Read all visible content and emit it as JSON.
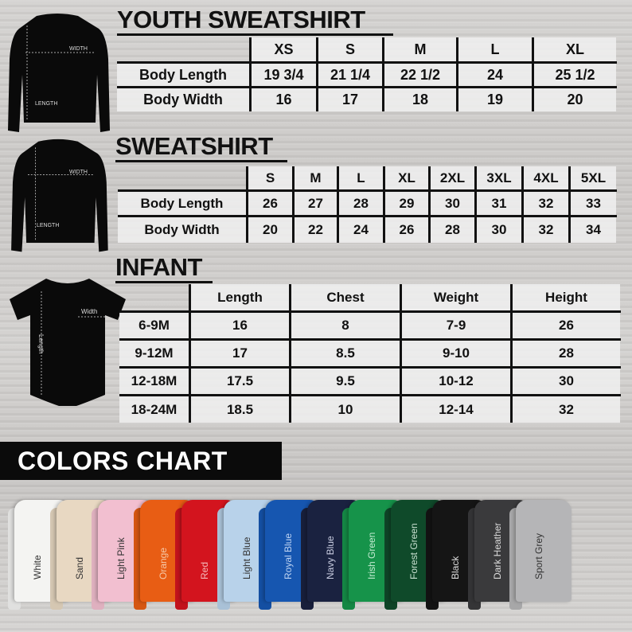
{
  "youth": {
    "title": "YOUTH SWEATSHIRT",
    "diagram": {
      "width_label": "WIDTH",
      "length_label": "LENGTH"
    },
    "sizes": [
      "XS",
      "S",
      "M",
      "L",
      "XL"
    ],
    "rows": [
      {
        "label": "Body Length",
        "values": [
          "19 3/4",
          "21 1/4",
          "22 1/2",
          "24",
          "25 1/2"
        ]
      },
      {
        "label": "Body Width",
        "values": [
          "16",
          "17",
          "18",
          "19",
          "20"
        ]
      }
    ]
  },
  "sweatshirt": {
    "title": "SWEATSHIRT",
    "diagram": {
      "width_label": "WIDTH",
      "length_label": "LENGTH"
    },
    "sizes": [
      "S",
      "M",
      "L",
      "XL",
      "2XL",
      "3XL",
      "4XL",
      "5XL"
    ],
    "rows": [
      {
        "label": "Body Length",
        "values": [
          "26",
          "27",
          "28",
          "29",
          "30",
          "31",
          "32",
          "33"
        ]
      },
      {
        "label": "Body Width",
        "values": [
          "20",
          "22",
          "24",
          "26",
          "28",
          "30",
          "32",
          "34"
        ]
      }
    ]
  },
  "infant": {
    "title": "INFANT",
    "diagram": {
      "width_label": "Width",
      "length_label": "Length"
    },
    "columns": [
      "Length",
      "Chest",
      "Weight",
      "Height"
    ],
    "rows": [
      {
        "label": "6-9M",
        "values": [
          "16",
          "8",
          "7-9",
          "26"
        ]
      },
      {
        "label": "9-12M",
        "values": [
          "17",
          "8.5",
          "9-10",
          "28"
        ]
      },
      {
        "label": "12-18M",
        "values": [
          "17.5",
          "9.5",
          "10-12",
          "30"
        ]
      },
      {
        "label": "18-24M",
        "values": [
          "18.5",
          "10",
          "12-14",
          "32"
        ]
      }
    ]
  },
  "colors_chart": {
    "title": "COLORS CHART",
    "colors": [
      {
        "name": "White",
        "hex": "#f4f4f2",
        "text": "#333333"
      },
      {
        "name": "Sand",
        "hex": "#e8d8c2",
        "text": "#333333"
      },
      {
        "name": "Light Pink",
        "hex": "#f2bfd0",
        "text": "#333333"
      },
      {
        "name": "Orange",
        "hex": "#e85d14",
        "text": "#f6c9a8"
      },
      {
        "name": "Red",
        "hex": "#d3141e",
        "text": "#f4b8b8"
      },
      {
        "name": "Light Blue",
        "hex": "#b8d2ea",
        "text": "#333333"
      },
      {
        "name": "Royal Blue",
        "hex": "#1656b0",
        "text": "#bcd2f2"
      },
      {
        "name": "Navy Blue",
        "hex": "#1a2240",
        "text": "#c8cce0"
      },
      {
        "name": "Irish Green",
        "hex": "#16934a",
        "text": "#c4ecd2"
      },
      {
        "name": "Forest Green",
        "hex": "#0f4a2a",
        "text": "#c8e0d0"
      },
      {
        "name": "Black",
        "hex": "#151515",
        "text": "#dddddd"
      },
      {
        "name": "Dark Heather",
        "hex": "#3a3a3c",
        "text": "#dddddd"
      },
      {
        "name": "Sport Grey",
        "hex": "#b5b5b7",
        "text": "#333333"
      }
    ]
  }
}
